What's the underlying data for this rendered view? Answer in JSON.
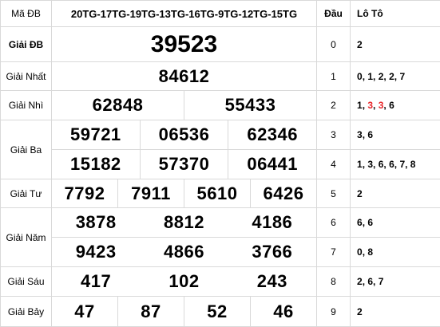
{
  "header": {
    "ma_db_label": "Mã ĐB",
    "ma_db_value": "20TG-17TG-19TG-13TG-16TG-9TG-12TG-15TG",
    "dau_label": "Đầu",
    "loto_label": "Lô Tô"
  },
  "prizes": {
    "db": {
      "label": "Giải ĐB",
      "numbers": [
        "39523"
      ]
    },
    "g1": {
      "label": "Giải Nhất",
      "numbers": [
        "84612"
      ]
    },
    "g2": {
      "label": "Giải Nhì",
      "numbers": [
        "62848",
        "55433"
      ]
    },
    "g3": {
      "label": "Giải Ba",
      "numbers": [
        "59721",
        "06536",
        "62346",
        "15182",
        "57370",
        "06441"
      ]
    },
    "g4": {
      "label": "Giải Tư",
      "numbers": [
        "7792",
        "7911",
        "5610",
        "6426"
      ]
    },
    "g5": {
      "label": "Giải Năm",
      "numbers": [
        "3878",
        "8812",
        "4186",
        "9423",
        "4866",
        "3766"
      ]
    },
    "g6": {
      "label": "Giải Sáu",
      "numbers": [
        "417",
        "102",
        "243"
      ]
    },
    "g7": {
      "label": "Giải Bảy",
      "numbers": [
        "47",
        "87",
        "52",
        "46"
      ]
    }
  },
  "loto": [
    {
      "dau": "0",
      "values": [
        {
          "v": "2",
          "red": false
        }
      ]
    },
    {
      "dau": "1",
      "values": [
        {
          "v": "0",
          "red": false
        },
        {
          "v": "1",
          "red": false
        },
        {
          "v": "2",
          "red": false
        },
        {
          "v": "2",
          "red": false
        },
        {
          "v": "7",
          "red": false
        }
      ]
    },
    {
      "dau": "2",
      "values": [
        {
          "v": "1",
          "red": false
        },
        {
          "v": "3",
          "red": true
        },
        {
          "v": "3",
          "red": true
        },
        {
          "v": "6",
          "red": false
        }
      ]
    },
    {
      "dau": "3",
      "values": [
        {
          "v": "3",
          "red": false
        },
        {
          "v": "6",
          "red": false
        }
      ]
    },
    {
      "dau": "4",
      "values": [
        {
          "v": "1",
          "red": false
        },
        {
          "v": "3",
          "red": false
        },
        {
          "v": "6",
          "red": false
        },
        {
          "v": "6",
          "red": false
        },
        {
          "v": "7",
          "red": false
        },
        {
          "v": "8",
          "red": false
        }
      ]
    },
    {
      "dau": "5",
      "values": [
        {
          "v": "2",
          "red": false
        }
      ]
    },
    {
      "dau": "6",
      "values": [
        {
          "v": "6",
          "red": false
        },
        {
          "v": "6",
          "red": false
        }
      ]
    },
    {
      "dau": "7",
      "values": [
        {
          "v": "0",
          "red": false
        },
        {
          "v": "8",
          "red": false
        }
      ]
    },
    {
      "dau": "8",
      "values": [
        {
          "v": "2",
          "red": false
        },
        {
          "v": "6",
          "red": false
        },
        {
          "v": "7",
          "red": false
        }
      ]
    },
    {
      "dau": "9",
      "values": [
        {
          "v": "2",
          "red": false
        }
      ]
    }
  ],
  "colors": {
    "accent_red": "#e8262a",
    "border": "#d9d9d9"
  }
}
